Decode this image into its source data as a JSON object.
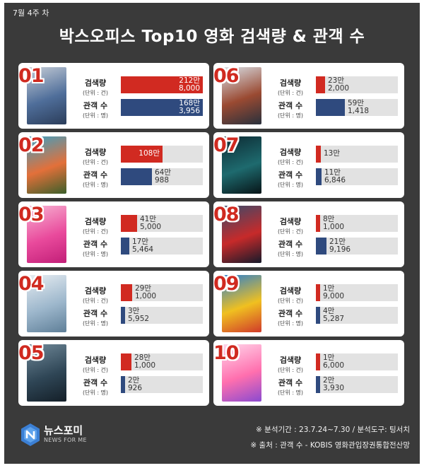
{
  "header": {
    "week": "7월 4주 차",
    "title": "박스오피스 Top10 영화 검색량 & 관객 수"
  },
  "labels": {
    "search": "검색량",
    "search_unit": "(단위 : 건)",
    "audience": "관객 수",
    "audience_unit": "(단위 : 명)"
  },
  "chart_data": {
    "type": "bar",
    "series_names": [
      "검색량",
      "관객 수"
    ],
    "colors": {
      "search": "#d12a21",
      "audience": "#2f4a7e",
      "track": "#e2e2e2",
      "rank": "#d02a20"
    },
    "items": [
      {
        "rank": "01",
        "search": 2128000,
        "search_man": "212만",
        "search_rest": "8,000",
        "audience": 1683956,
        "audience_man": "168만",
        "audience_rest": "3,956",
        "poster": [
          "#c5ccd6",
          "#4f6e9a",
          "#2b3d5a"
        ]
      },
      {
        "rank": "02",
        "search": 1080000,
        "search_man": "108만",
        "search_rest": "",
        "audience": 640988,
        "audience_man": "64만",
        "audience_rest": "988",
        "poster": [
          "#3aa0c4",
          "#e3703a",
          "#3b5f2a"
        ]
      },
      {
        "rank": "03",
        "search": 415000,
        "search_man": "41만",
        "search_rest": "5,000",
        "audience": 175464,
        "audience_man": "17만",
        "audience_rest": "5,464",
        "poster": [
          "#f7b3d2",
          "#e94a9c",
          "#c21f78"
        ]
      },
      {
        "rank": "04",
        "search": 291000,
        "search_man": "29만",
        "search_rest": "1,000",
        "audience": 35952,
        "audience_man": "3만",
        "audience_rest": "5,952",
        "poster": [
          "#e7edf2",
          "#9db7cc",
          "#5f7f98"
        ]
      },
      {
        "rank": "05",
        "search": 281000,
        "search_man": "28만",
        "search_rest": "1,000",
        "audience": 20926,
        "audience_man": "2만",
        "audience_rest": "926",
        "poster": [
          "#6f8898",
          "#2f4656",
          "#141f28"
        ]
      },
      {
        "rank": "06",
        "search": 232000,
        "search_man": "23만",
        "search_rest": "2,000",
        "audience": 591418,
        "audience_man": "59만",
        "audience_rest": "1,418",
        "poster": [
          "#d8dfe6",
          "#9a4a32",
          "#28303c"
        ]
      },
      {
        "rank": "07",
        "search": 130000,
        "search_man": "13만",
        "search_rest": "",
        "audience": 116846,
        "audience_man": "11만",
        "audience_rest": "6,846",
        "poster": [
          "#0d2a33",
          "#1e6a6e",
          "#071417"
        ]
      },
      {
        "rank": "08",
        "search": 81000,
        "search_man": "8만",
        "search_rest": "1,000",
        "audience": 219196,
        "audience_man": "21만",
        "audience_rest": "9,196",
        "poster": [
          "#3a4a6a",
          "#c72a2a",
          "#151a2a"
        ]
      },
      {
        "rank": "09",
        "search": 19000,
        "search_man": "1만",
        "search_rest": "9,000",
        "audience": 45287,
        "audience_man": "4만",
        "audience_rest": "5,287",
        "poster": [
          "#2a7fd0",
          "#f0c020",
          "#d03a2a"
        ]
      },
      {
        "rank": "10",
        "search": 16000,
        "search_man": "1만",
        "search_rest": "6,000",
        "audience": 23930,
        "audience_man": "2만",
        "audience_rest": "3,930",
        "poster": [
          "#ffd6ea",
          "#ff6fae",
          "#8a4ad0"
        ]
      }
    ]
  },
  "footer": {
    "logo_main": "뉴스포미",
    "logo_sub": "NEWS FOR ME",
    "note1": "※ 분석기간 : 23.7.24~7.30 / 분석도구: 팅서치",
    "note2": "※ 출처 : 관객 수 -  KOBIS 영화관입장권통합전산망"
  }
}
